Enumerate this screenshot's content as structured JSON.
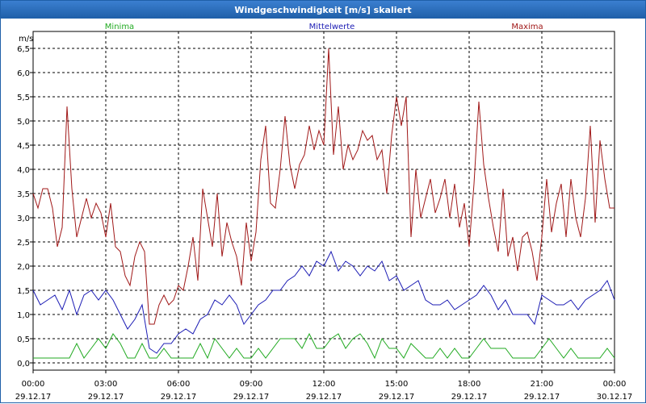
{
  "window": {
    "title": "Windgeschwindigkeit [m/s] skaliert"
  },
  "chart_data": {
    "type": "line",
    "ylabel": "m/s",
    "ylim": [
      -0.15,
      6.85
    ],
    "yticks": [
      0.0,
      0.5,
      1.0,
      1.5,
      2.0,
      2.5,
      3.0,
      3.5,
      4.0,
      4.5,
      5.0,
      5.5,
      6.0,
      6.5
    ],
    "ytick_labels": [
      "0,0",
      "0,5",
      "1,0",
      "1,5",
      "2,0",
      "2,5",
      "3,0",
      "3,5",
      "4,0",
      "4,5",
      "5,0",
      "5,5",
      "6,0",
      "6,5"
    ],
    "xlim": [
      0,
      24
    ],
    "xticks": [
      0,
      3,
      6,
      9,
      12,
      15,
      18,
      21,
      24
    ],
    "xtick_time": [
      "00:00",
      "03:00",
      "06:00",
      "09:00",
      "12:00",
      "15:00",
      "18:00",
      "21:00",
      "00:00"
    ],
    "xtick_date": [
      "29.12.17",
      "29.12.17",
      "29.12.17",
      "29.12.17",
      "29.12.17",
      "29.12.17",
      "29.12.17",
      "29.12.17",
      "30.12.17"
    ],
    "grid": true,
    "legend_position": "top",
    "series": [
      {
        "name": "Minima",
        "color": "#22aa22",
        "x": [
          0,
          1.5,
          1.8,
          2.1,
          2.4,
          2.7,
          3.0,
          3.3,
          3.6,
          3.9,
          4.2,
          4.5,
          4.8,
          5.1,
          5.4,
          5.7,
          6.0,
          6.6,
          6.9,
          7.2,
          7.5,
          8.1,
          8.4,
          8.7,
          9.0,
          9.3,
          9.6,
          10.2,
          10.8,
          11.1,
          11.4,
          11.7,
          12.0,
          12.3,
          12.6,
          12.9,
          13.2,
          13.5,
          13.8,
          14.1,
          14.4,
          14.7,
          15.0,
          15.3,
          15.6,
          16.2,
          16.5,
          16.8,
          17.1,
          17.4,
          17.7,
          18.0,
          18.3,
          18.6,
          18.9,
          19.5,
          19.8,
          20.1,
          20.4,
          20.7,
          21.0,
          21.3,
          21.6,
          21.9,
          22.2,
          22.5,
          23.1,
          23.4,
          23.7,
          24.0
        ],
        "y": [
          0.1,
          0.1,
          0.4,
          0.1,
          0.3,
          0.5,
          0.3,
          0.6,
          0.4,
          0.1,
          0.1,
          0.4,
          0.1,
          0.1,
          0.3,
          0.1,
          0.1,
          0.1,
          0.4,
          0.1,
          0.5,
          0.1,
          0.3,
          0.1,
          0.1,
          0.3,
          0.1,
          0.5,
          0.5,
          0.3,
          0.6,
          0.3,
          0.3,
          0.5,
          0.6,
          0.3,
          0.5,
          0.6,
          0.4,
          0.1,
          0.5,
          0.3,
          0.3,
          0.1,
          0.4,
          0.1,
          0.1,
          0.3,
          0.1,
          0.3,
          0.1,
          0.1,
          0.3,
          0.5,
          0.3,
          0.3,
          0.1,
          0.1,
          0.1,
          0.1,
          0.3,
          0.5,
          0.3,
          0.1,
          0.3,
          0.1,
          0.1,
          0.1,
          0.3,
          0.1
        ]
      },
      {
        "name": "Mittelwerte",
        "color": "#1c1cb4",
        "x": [
          0,
          0.3,
          0.6,
          0.9,
          1.2,
          1.5,
          1.8,
          2.1,
          2.4,
          2.7,
          3.0,
          3.3,
          3.6,
          3.9,
          4.2,
          4.5,
          4.8,
          5.1,
          5.4,
          5.7,
          6.0,
          6.3,
          6.6,
          6.9,
          7.2,
          7.5,
          7.8,
          8.1,
          8.4,
          8.7,
          9.0,
          9.3,
          9.6,
          9.9,
          10.2,
          10.5,
          10.8,
          11.1,
          11.4,
          11.7,
          12.0,
          12.3,
          12.6,
          12.9,
          13.2,
          13.5,
          13.8,
          14.1,
          14.4,
          14.7,
          15.0,
          15.3,
          15.6,
          15.9,
          16.2,
          16.5,
          16.8,
          17.1,
          17.4,
          17.7,
          18.0,
          18.3,
          18.6,
          18.9,
          19.2,
          19.5,
          19.8,
          20.1,
          20.4,
          20.7,
          21.0,
          21.3,
          21.6,
          21.9,
          22.2,
          22.5,
          22.8,
          23.1,
          23.4,
          23.7,
          24.0
        ],
        "y": [
          1.5,
          1.2,
          1.3,
          1.4,
          1.1,
          1.5,
          1.0,
          1.4,
          1.5,
          1.3,
          1.5,
          1.3,
          1.0,
          0.7,
          0.9,
          1.2,
          0.3,
          0.2,
          0.4,
          0.4,
          0.6,
          0.7,
          0.6,
          0.9,
          1.0,
          1.3,
          1.2,
          1.4,
          1.2,
          0.8,
          1.0,
          1.2,
          1.3,
          1.5,
          1.5,
          1.7,
          1.8,
          2.0,
          1.8,
          2.1,
          2.0,
          2.3,
          1.9,
          2.1,
          2.0,
          1.8,
          2.0,
          1.9,
          2.1,
          1.7,
          1.8,
          1.5,
          1.6,
          1.7,
          1.3,
          1.2,
          1.2,
          1.3,
          1.1,
          1.2,
          1.3,
          1.4,
          1.6,
          1.4,
          1.1,
          1.3,
          1.0,
          1.0,
          1.0,
          0.8,
          1.4,
          1.3,
          1.2,
          1.2,
          1.3,
          1.1,
          1.3,
          1.4,
          1.5,
          1.7,
          1.3
        ]
      },
      {
        "name": "Maxima",
        "color": "#a01818",
        "x": [
          0,
          0.2,
          0.4,
          0.6,
          0.8,
          1.0,
          1.2,
          1.4,
          1.6,
          1.8,
          2.0,
          2.2,
          2.4,
          2.6,
          2.8,
          3.0,
          3.2,
          3.4,
          3.6,
          3.8,
          4.0,
          4.2,
          4.4,
          4.6,
          4.8,
          5.0,
          5.2,
          5.4,
          5.6,
          5.8,
          6.0,
          6.2,
          6.4,
          6.6,
          6.8,
          7.0,
          7.2,
          7.4,
          7.6,
          7.8,
          8.0,
          8.2,
          8.4,
          8.6,
          8.8,
          9.0,
          9.2,
          9.4,
          9.6,
          9.8,
          10.0,
          10.2,
          10.4,
          10.6,
          10.8,
          11.0,
          11.2,
          11.4,
          11.6,
          11.8,
          12.0,
          12.2,
          12.4,
          12.6,
          12.8,
          13.0,
          13.2,
          13.4,
          13.6,
          13.8,
          14.0,
          14.2,
          14.4,
          14.6,
          14.8,
          15.0,
          15.2,
          15.4,
          15.6,
          15.8,
          16.0,
          16.2,
          16.4,
          16.6,
          16.8,
          17.0,
          17.2,
          17.4,
          17.6,
          17.8,
          18.0,
          18.2,
          18.4,
          18.6,
          18.8,
          19.0,
          19.2,
          19.4,
          19.6,
          19.8,
          20.0,
          20.2,
          20.4,
          20.6,
          20.8,
          21.0,
          21.2,
          21.4,
          21.6,
          21.8,
          22.0,
          22.2,
          22.4,
          22.6,
          22.8,
          23.0,
          23.2,
          23.4,
          23.6,
          23.8,
          24.0
        ],
        "y": [
          3.5,
          3.2,
          3.6,
          3.6,
          3.2,
          2.4,
          2.8,
          5.3,
          3.6,
          2.6,
          3.0,
          3.4,
          3.0,
          3.3,
          3.1,
          2.6,
          3.3,
          2.4,
          2.3,
          1.8,
          1.6,
          2.2,
          2.5,
          2.3,
          0.8,
          0.8,
          1.2,
          1.4,
          1.2,
          1.3,
          1.6,
          1.5,
          2.0,
          2.6,
          1.7,
          3.6,
          3.0,
          2.4,
          3.5,
          2.2,
          2.9,
          2.5,
          2.2,
          1.6,
          2.9,
          2.1,
          2.7,
          4.2,
          4.9,
          3.3,
          3.2,
          4.0,
          5.1,
          4.1,
          3.6,
          4.1,
          4.3,
          4.9,
          4.4,
          4.8,
          4.5,
          6.5,
          4.3,
          5.3,
          4.0,
          4.5,
          4.2,
          4.4,
          4.8,
          4.6,
          4.7,
          4.2,
          4.4,
          3.5,
          4.7,
          5.5,
          4.9,
          5.5,
          2.6,
          4.0,
          3.0,
          3.4,
          3.8,
          3.1,
          3.4,
          3.8,
          3.0,
          3.7,
          2.8,
          3.3,
          2.4,
          3.7,
          5.4,
          4.1,
          3.4,
          2.8,
          2.3,
          3.6,
          2.2,
          2.6,
          1.9,
          2.6,
          2.7,
          2.3,
          1.7,
          2.6,
          3.8,
          2.7,
          3.3,
          3.7,
          2.6,
          3.8,
          3.0,
          2.6,
          3.4,
          4.9,
          2.9,
          4.6,
          3.8,
          3.2,
          3.2
        ]
      }
    ]
  }
}
